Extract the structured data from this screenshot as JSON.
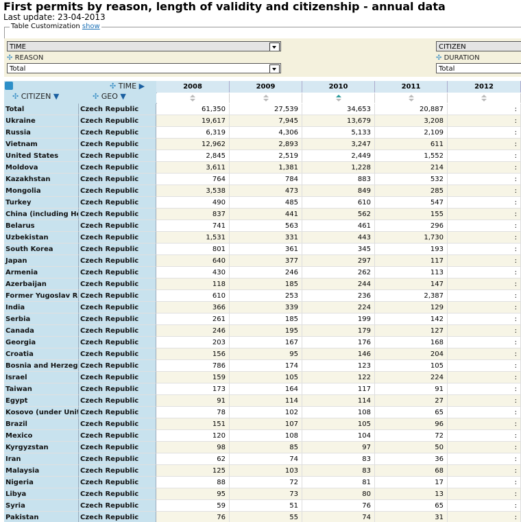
{
  "header": {
    "title": "First permits by reason, length of validity and citizenship - annual data",
    "last_update": "Last update: 23-04-2013"
  },
  "customization": {
    "legend": "Table Customization",
    "link": "show"
  },
  "dimensions": {
    "time": "TIME",
    "reason_label": "REASON",
    "reason_value": "Total",
    "citizen": "CITIZEN",
    "duration_label": "DURATION",
    "duration_value": "Total"
  },
  "table": {
    "col_dim": "TIME",
    "row_dims": [
      "CITIZEN",
      "GEO"
    ],
    "columns": [
      "2008",
      "2009",
      "2010",
      "2011",
      "2012"
    ],
    "rows": [
      [
        "Total",
        "Czech Republic",
        "61,350",
        "27,539",
        "34,653",
        "20,887",
        ":"
      ],
      [
        "Ukraine",
        "Czech Republic",
        "19,617",
        "7,945",
        "13,679",
        "3,208",
        ":"
      ],
      [
        "Russia",
        "Czech Republic",
        "6,319",
        "4,306",
        "5,133",
        "2,109",
        ":"
      ],
      [
        "Vietnam",
        "Czech Republic",
        "12,962",
        "2,893",
        "3,247",
        "611",
        ":"
      ],
      [
        "United States",
        "Czech Republic",
        "2,845",
        "2,519",
        "2,449",
        "1,552",
        ":"
      ],
      [
        "Moldova",
        "Czech Republic",
        "3,611",
        "1,381",
        "1,228",
        "214",
        ":"
      ],
      [
        "Kazakhstan",
        "Czech Republic",
        "764",
        "784",
        "883",
        "532",
        ":"
      ],
      [
        "Mongolia",
        "Czech Republic",
        "3,538",
        "473",
        "849",
        "285",
        ":"
      ],
      [
        "Turkey",
        "Czech Republic",
        "490",
        "485",
        "610",
        "547",
        ":"
      ],
      [
        "China (including Hong",
        "Czech Republic",
        "837",
        "441",
        "562",
        "155",
        ":"
      ],
      [
        "Belarus",
        "Czech Republic",
        "741",
        "563",
        "461",
        "296",
        ":"
      ],
      [
        "Uzbekistan",
        "Czech Republic",
        "1,531",
        "331",
        "443",
        "1,730",
        ":"
      ],
      [
        "South Korea",
        "Czech Republic",
        "801",
        "361",
        "345",
        "193",
        ":"
      ],
      [
        "Japan",
        "Czech Republic",
        "640",
        "377",
        "297",
        "117",
        ":"
      ],
      [
        "Armenia",
        "Czech Republic",
        "430",
        "246",
        "262",
        "113",
        ":"
      ],
      [
        "Azerbaijan",
        "Czech Republic",
        "118",
        "185",
        "244",
        "147",
        ":"
      ],
      [
        "Former Yugoslav Repu",
        "Czech Republic",
        "610",
        "253",
        "236",
        "2,387",
        ":"
      ],
      [
        "India",
        "Czech Republic",
        "366",
        "339",
        "224",
        "129",
        ":"
      ],
      [
        "Serbia",
        "Czech Republic",
        "261",
        "185",
        "199",
        "142",
        ":"
      ],
      [
        "Canada",
        "Czech Republic",
        "246",
        "195",
        "179",
        "127",
        ":"
      ],
      [
        "Georgia",
        "Czech Republic",
        "203",
        "167",
        "176",
        "168",
        ":"
      ],
      [
        "Croatia",
        "Czech Republic",
        "156",
        "95",
        "146",
        "204",
        ":"
      ],
      [
        "Bosnia and Herzegovin",
        "Czech Republic",
        "786",
        "174",
        "123",
        "105",
        ":"
      ],
      [
        "Israel",
        "Czech Republic",
        "159",
        "105",
        "122",
        "224",
        ":"
      ],
      [
        "Taiwan",
        "Czech Republic",
        "173",
        "164",
        "117",
        "91",
        ":"
      ],
      [
        "Egypt",
        "Czech Republic",
        "91",
        "114",
        "114",
        "27",
        ":"
      ],
      [
        "Kosovo (under United",
        "Czech Republic",
        "78",
        "102",
        "108",
        "65",
        ":"
      ],
      [
        "Brazil",
        "Czech Republic",
        "151",
        "107",
        "105",
        "96",
        ":"
      ],
      [
        "Mexico",
        "Czech Republic",
        "120",
        "108",
        "104",
        "72",
        ":"
      ],
      [
        "Kyrgyzstan",
        "Czech Republic",
        "98",
        "85",
        "97",
        "50",
        ":"
      ],
      [
        "Iran",
        "Czech Republic",
        "62",
        "74",
        "83",
        "36",
        ":"
      ],
      [
        "Malaysia",
        "Czech Republic",
        "125",
        "103",
        "83",
        "68",
        ":"
      ],
      [
        "Nigeria",
        "Czech Republic",
        "88",
        "72",
        "81",
        "17",
        ":"
      ],
      [
        "Libya",
        "Czech Republic",
        "95",
        "73",
        "80",
        "13",
        ":"
      ],
      [
        "Syria",
        "Czech Republic",
        "59",
        "51",
        "76",
        "65",
        ":"
      ],
      [
        "Pakistan",
        "Czech Republic",
        "76",
        "55",
        "74",
        "31",
        ":"
      ]
    ]
  }
}
